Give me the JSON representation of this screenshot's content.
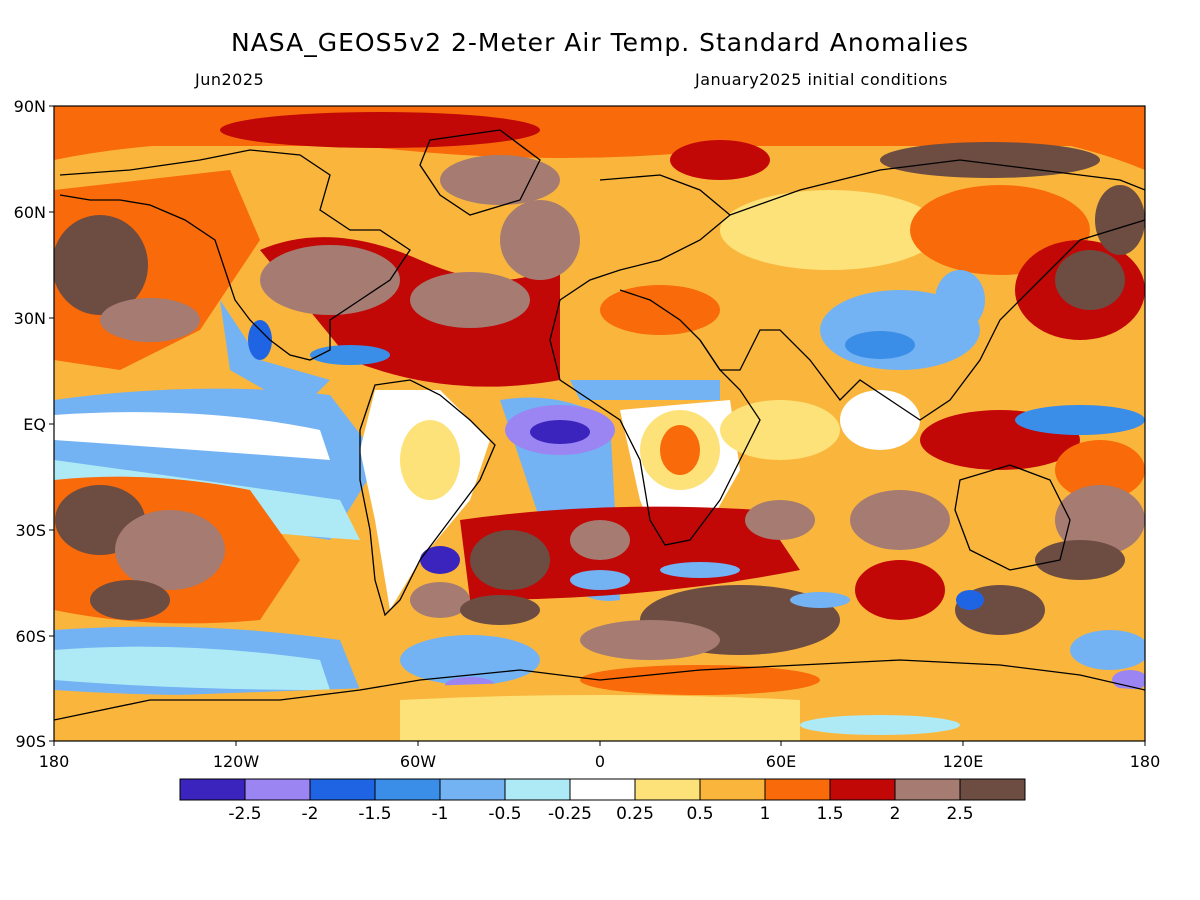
{
  "header": {
    "title": "NASA_GEOS5v2 2-Meter Air Temp. Standard Anomalies",
    "valid_month": "Jun2025",
    "init_conditions": "January2025 initial conditions"
  },
  "map": {
    "lat_ticks": [
      "90N",
      "60N",
      "30N",
      "EQ",
      "30S",
      "60S",
      "90S"
    ],
    "lon_ticks": [
      "180",
      "120W",
      "60W",
      "0",
      "60E",
      "120E",
      "180"
    ]
  },
  "colorbar": {
    "colors": [
      "#3b24bd",
      "#9a85f2",
      "#1f64e3",
      "#3a8ee8",
      "#73b2f3",
      "#aeeaf6",
      "#ffffff",
      "#fde27a",
      "#fab63c",
      "#f86a0a",
      "#c20707",
      "#a57b72",
      "#6d4c42"
    ],
    "labels": [
      "-2.5",
      "-2",
      "-1.5",
      "-1",
      "-0.5",
      "-0.25",
      "0.25",
      "0.5",
      "1",
      "1.5",
      "2",
      "2.5"
    ]
  }
}
